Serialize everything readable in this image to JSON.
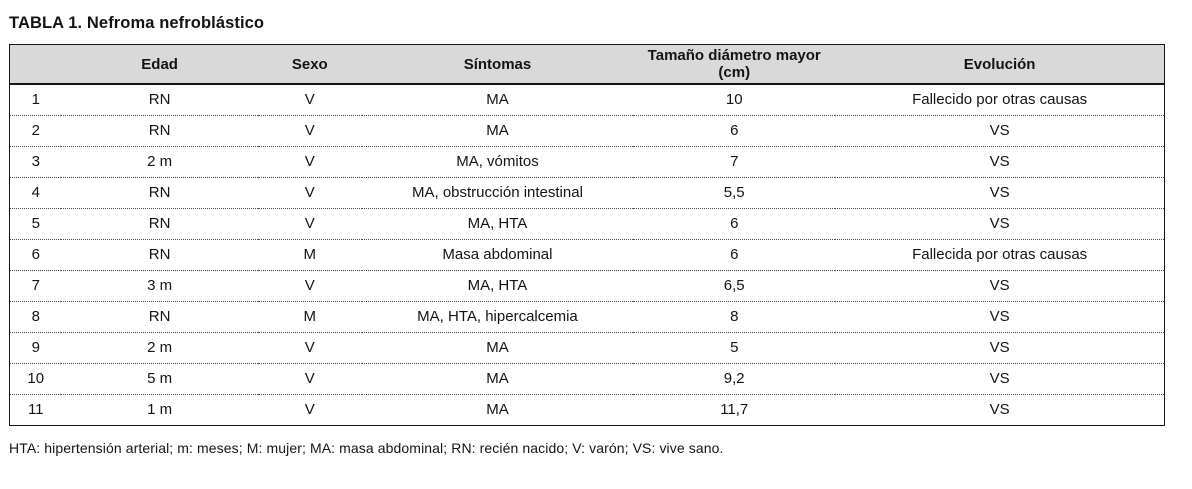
{
  "title": "TABLA 1. Nefroma nefroblástico",
  "table": {
    "columns": [
      {
        "key": "num",
        "label": ""
      },
      {
        "key": "edad",
        "label": "Edad"
      },
      {
        "key": "sexo",
        "label": "Sexo"
      },
      {
        "key": "sintomas",
        "label": "Síntomas"
      },
      {
        "key": "tamano",
        "label": "Tamaño diámetro mayor (cm)"
      },
      {
        "key": "evolucion",
        "label": "Evolución"
      }
    ],
    "rows": [
      {
        "num": "1",
        "edad": "RN",
        "sexo": "V",
        "sintomas": "MA",
        "tamano": "10",
        "evolucion": "Fallecido por otras causas"
      },
      {
        "num": "2",
        "edad": "RN",
        "sexo": "V",
        "sintomas": "MA",
        "tamano": "6",
        "evolucion": "VS"
      },
      {
        "num": "3",
        "edad": "2 m",
        "sexo": "V",
        "sintomas": "MA, vómitos",
        "tamano": "7",
        "evolucion": "VS"
      },
      {
        "num": "4",
        "edad": "RN",
        "sexo": "V",
        "sintomas": "MA, obstrucción intestinal",
        "tamano": "5,5",
        "evolucion": "VS"
      },
      {
        "num": "5",
        "edad": "RN",
        "sexo": "V",
        "sintomas": "MA, HTA",
        "tamano": "6",
        "evolucion": "VS"
      },
      {
        "num": "6",
        "edad": "RN",
        "sexo": "M",
        "sintomas": "Masa abdominal",
        "tamano": "6",
        "evolucion": "Fallecida por otras causas"
      },
      {
        "num": "7",
        "edad": "3 m",
        "sexo": "V",
        "sintomas": "MA, HTA",
        "tamano": "6,5",
        "evolucion": "VS"
      },
      {
        "num": "8",
        "edad": "RN",
        "sexo": "M",
        "sintomas": "MA, HTA, hipercalcemia",
        "tamano": "8",
        "evolucion": "VS"
      },
      {
        "num": "9",
        "edad": "2 m",
        "sexo": "V",
        "sintomas": "MA",
        "tamano": "5",
        "evolucion": "VS"
      },
      {
        "num": "10",
        "edad": "5 m",
        "sexo": "V",
        "sintomas": "MA",
        "tamano": "9,2",
        "evolucion": "VS"
      },
      {
        "num": "11",
        "edad": "1 m",
        "sexo": "V",
        "sintomas": "MA",
        "tamano": "11,7",
        "evolucion": "VS"
      }
    ]
  },
  "footnote": "HTA: hipertensión arterial; m: meses; M: mujer; MA: masa abdominal; RN: recién nacido; V: varón; VS: vive sano.",
  "colors": {
    "header_bg": "#d9d9d9",
    "border": "#161616",
    "text": "#141414"
  }
}
